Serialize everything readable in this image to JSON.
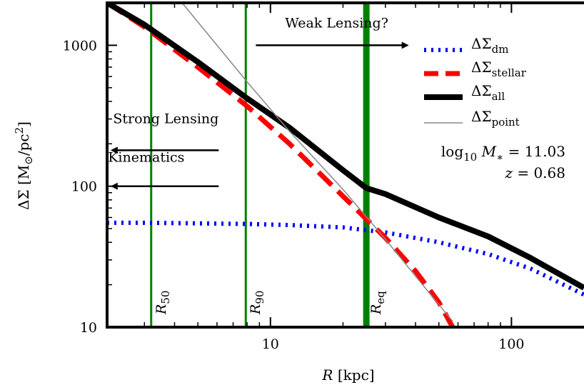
{
  "chart_data": {
    "type": "line",
    "xlabel_symbol": "R",
    "xlabel_unit": "[kpc]",
    "ylabel_text": "ΔΣ [M",
    "ylabel_sub": "⊙",
    "ylabel_tail": "/pc",
    "ylabel_sup": "2",
    "ylabel_close": "]",
    "xscale": "log",
    "yscale": "log",
    "xlim": [
      2.1,
      200
    ],
    "ylim": [
      10,
      2000
    ],
    "x_ticks": [
      10,
      100
    ],
    "x_tick_labels": [
      "10",
      "100"
    ],
    "y_ticks": [
      10,
      100,
      1000
    ],
    "y_tick_labels": [
      "10",
      "100",
      "1000"
    ],
    "grid": false,
    "legend_position": "right",
    "series": [
      {
        "name": "ΔΣ_dm",
        "label_main": "ΔΣ",
        "label_sub": "dm",
        "color": "#0000ff",
        "style": "dotted",
        "x": [
          2.1,
          3,
          5,
          8,
          12,
          20,
          30,
          50,
          80,
          120,
          200
        ],
        "y": [
          55,
          55,
          54.5,
          54,
          53,
          51,
          47,
          40,
          33,
          26,
          17
        ]
      },
      {
        "name": "ΔΣ_stellar",
        "label_main": "ΔΣ",
        "label_sub": "stellar",
        "color": "#ff0000",
        "style": "dashed",
        "x": [
          2.1,
          3,
          5,
          8,
          12,
          20,
          30,
          40,
          50,
          57
        ],
        "y": [
          2000,
          1350,
          700,
          370,
          200,
          85,
          43,
          25,
          15,
          10
        ]
      },
      {
        "name": "ΔΣ_all",
        "label_main": "ΔΣ",
        "label_sub": "all",
        "color": "#000000",
        "style": "solid-thick",
        "x": [
          2.1,
          3,
          5,
          8,
          12,
          20,
          25,
          30,
          50,
          80,
          120,
          200
        ],
        "y": [
          2000,
          1400,
          760,
          420,
          260,
          130,
          97,
          88,
          60,
          44,
          31,
          19
        ]
      },
      {
        "name": "ΔΣ_point",
        "label_main": "ΔΣ",
        "label_sub": "point",
        "color": "#888888",
        "style": "solid-thin",
        "x": [
          4.3,
          8,
          12,
          20,
          30,
          40,
          57
        ],
        "y": [
          2000,
          550,
          245,
          95,
          42,
          23,
          11
        ]
      }
    ],
    "vertical_lines": [
      {
        "x": 3.2,
        "label_main": "R",
        "label_sub": "50",
        "color": "#008000",
        "width": 3
      },
      {
        "x": 7.9,
        "label_main": "R",
        "label_sub": "90",
        "color": "#008000",
        "width": 3
      },
      {
        "x": 25,
        "label_main": "R",
        "label_sub": "eq",
        "color": "#008000",
        "width": 9
      }
    ],
    "annotations": [
      {
        "text": "Weak Lensing?",
        "direction": "right",
        "text_x": 11.5,
        "text_y": 1430,
        "arrow_x_from": 8.7,
        "arrow_x_to": 37,
        "arrow_y": 1000
      },
      {
        "text": "Strong Lensing",
        "direction": "left",
        "text_x": 6.1,
        "text_y": 300,
        "arrow_x_from": 6.1,
        "arrow_x_to": 2.2,
        "arrow_y": 180
      },
      {
        "text": "Kinematics",
        "direction": "left",
        "text_x": 4.4,
        "text_y": 160,
        "arrow_x_from": 6.1,
        "arrow_x_to": 2.2,
        "arrow_y": 100
      }
    ],
    "info_text": {
      "line1_prefix": "log",
      "line1_sub": "10",
      "line1_var": "M",
      "line1_var_sub": "∗",
      "line1_value": " = 11.03",
      "line2_var": "z",
      "line2_value": " = 0.68"
    }
  }
}
